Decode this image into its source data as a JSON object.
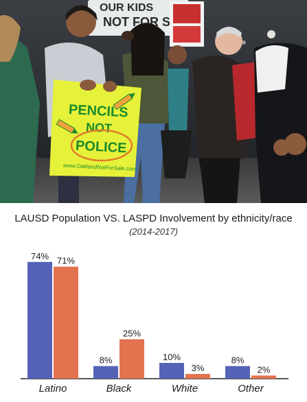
{
  "photo": {
    "sign_main_lines": [
      "PENCILS",
      "NOT",
      "POLICE"
    ],
    "sign_url": "www.OaklandNotForSale.com",
    "banner_text": "OUR KIDS NOT FOR SALE"
  },
  "chart_data": {
    "type": "bar",
    "title": "LAUSD Population VS. LASPD Involvement by ethnicity/race",
    "subtitle": "(2014-2017)",
    "categories": [
      "Latino",
      "Black",
      "White",
      "Other"
    ],
    "series": [
      {
        "values": [
          74,
          8,
          10,
          8
        ],
        "labels": [
          "74%",
          "8%",
          "10%",
          "8%"
        ],
        "color": "#5563b6"
      },
      {
        "values": [
          71,
          25,
          3,
          2
        ],
        "labels": [
          "71%",
          "25%",
          "3%",
          "2%"
        ],
        "color": "#e3734f"
      }
    ],
    "ylim": [
      0,
      80
    ],
    "grid": false,
    "legend": "none"
  }
}
